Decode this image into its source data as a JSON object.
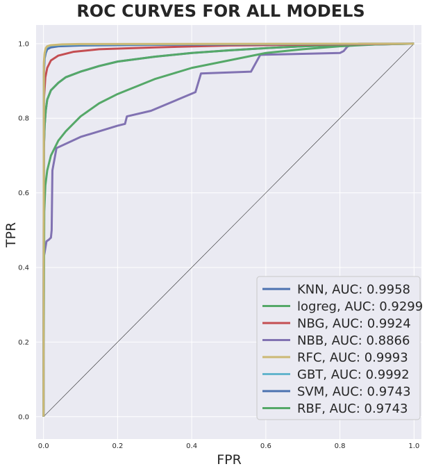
{
  "chart_data": {
    "type": "line",
    "title": "ROC CURVES FOR ALL MODELS",
    "xlabel": "FPR",
    "ylabel": "TPR",
    "xlim": [
      -0.02,
      1.02
    ],
    "ylim": [
      -0.06,
      1.05
    ],
    "xticks": [
      "0.0",
      "0.2",
      "0.4",
      "0.6",
      "0.8",
      "1.0"
    ],
    "yticks": [
      "0.0",
      "0.2",
      "0.4",
      "0.6",
      "0.8",
      "1.0"
    ],
    "grid": true,
    "legend_position": "bottom-right",
    "background_color": "#eaeaf2",
    "diagonal_reference": [
      [
        0,
        0
      ],
      [
        1,
        1
      ]
    ],
    "series": [
      {
        "name": "KNN, AUC: 0.9958",
        "color": "#4c72b0",
        "points": [
          [
            0,
            0
          ],
          [
            0.001,
            0.92
          ],
          [
            0.003,
            0.96
          ],
          [
            0.006,
            0.975
          ],
          [
            0.01,
            0.985
          ],
          [
            0.02,
            0.99
          ],
          [
            0.04,
            0.993
          ],
          [
            0.1,
            0.995
          ],
          [
            0.3,
            0.997
          ],
          [
            1,
            1
          ]
        ]
      },
      {
        "name": "logreg, AUC: 0.9299",
        "color": "#55a868",
        "points": [
          [
            0,
            0
          ],
          [
            0.002,
            0.55
          ],
          [
            0.005,
            0.62
          ],
          [
            0.01,
            0.66
          ],
          [
            0.02,
            0.7
          ],
          [
            0.04,
            0.74
          ],
          [
            0.06,
            0.765
          ],
          [
            0.1,
            0.805
          ],
          [
            0.15,
            0.84
          ],
          [
            0.2,
            0.865
          ],
          [
            0.25,
            0.885
          ],
          [
            0.3,
            0.905
          ],
          [
            0.35,
            0.92
          ],
          [
            0.4,
            0.935
          ],
          [
            0.45,
            0.945
          ],
          [
            0.5,
            0.955
          ],
          [
            0.55,
            0.965
          ],
          [
            0.6,
            0.975
          ],
          [
            0.7,
            0.985
          ],
          [
            0.8,
            0.993
          ],
          [
            0.9,
            0.998
          ],
          [
            1,
            1
          ]
        ]
      },
      {
        "name": "NBG, AUC: 0.9924",
        "color": "#c44e52",
        "points": [
          [
            0,
            0
          ],
          [
            0.001,
            0.85
          ],
          [
            0.005,
            0.91
          ],
          [
            0.01,
            0.935
          ],
          [
            0.02,
            0.955
          ],
          [
            0.04,
            0.968
          ],
          [
            0.08,
            0.978
          ],
          [
            0.15,
            0.985
          ],
          [
            0.3,
            0.99
          ],
          [
            0.5,
            0.995
          ],
          [
            1,
            1
          ]
        ]
      },
      {
        "name": "NBB, AUC: 0.8866",
        "color": "#8172b2",
        "points": [
          [
            0,
            0
          ],
          [
            0.001,
            0.43
          ],
          [
            0.003,
            0.44
          ],
          [
            0.008,
            0.47
          ],
          [
            0.015,
            0.475
          ],
          [
            0.02,
            0.48
          ],
          [
            0.022,
            0.5
          ],
          [
            0.024,
            0.66
          ],
          [
            0.035,
            0.72
          ],
          [
            0.1,
            0.75
          ],
          [
            0.15,
            0.765
          ],
          [
            0.2,
            0.78
          ],
          [
            0.22,
            0.785
          ],
          [
            0.225,
            0.805
          ],
          [
            0.29,
            0.82
          ],
          [
            0.41,
            0.87
          ],
          [
            0.425,
            0.92
          ],
          [
            0.56,
            0.925
          ],
          [
            0.585,
            0.97
          ],
          [
            0.8,
            0.975
          ],
          [
            0.81,
            0.98
          ],
          [
            0.82,
            0.992
          ],
          [
            0.835,
            0.998
          ],
          [
            0.85,
            1
          ],
          [
            1,
            1
          ]
        ]
      },
      {
        "name": "RFC, AUC: 0.9993",
        "color": "#ccb974",
        "points": [
          [
            0,
            0
          ],
          [
            0.001,
            0.95
          ],
          [
            0.003,
            0.975
          ],
          [
            0.006,
            0.988
          ],
          [
            0.01,
            0.993
          ],
          [
            0.02,
            0.996
          ],
          [
            0.05,
            0.998
          ],
          [
            0.1,
            0.999
          ],
          [
            1,
            1
          ]
        ]
      },
      {
        "name": "GBT, AUC: 0.9992",
        "color": "#64b5cd",
        "points": [
          [
            0,
            0
          ],
          [
            0.001,
            0.94
          ],
          [
            0.003,
            0.97
          ],
          [
            0.006,
            0.985
          ],
          [
            0.01,
            0.992
          ],
          [
            0.02,
            0.995
          ],
          [
            0.05,
            0.997
          ],
          [
            0.1,
            0.998
          ],
          [
            1,
            1
          ]
        ]
      },
      {
        "name": "SVM, AUC: 0.9743",
        "color": "#4c72b0",
        "points": [
          [
            0,
            0
          ],
          [
            0.001,
            0.72
          ],
          [
            0.003,
            0.78
          ],
          [
            0.006,
            0.82
          ],
          [
            0.01,
            0.85
          ],
          [
            0.02,
            0.875
          ],
          [
            0.04,
            0.895
          ],
          [
            0.06,
            0.91
          ],
          [
            0.1,
            0.925
          ],
          [
            0.15,
            0.94
          ],
          [
            0.2,
            0.952
          ],
          [
            0.3,
            0.965
          ],
          [
            0.4,
            0.975
          ],
          [
            0.5,
            0.982
          ],
          [
            0.6,
            0.988
          ],
          [
            0.7,
            0.993
          ],
          [
            0.8,
            0.996
          ],
          [
            1,
            1
          ]
        ]
      },
      {
        "name": "RBF, AUC: 0.9743",
        "color": "#55a868",
        "points": [
          [
            0,
            0
          ],
          [
            0.001,
            0.72
          ],
          [
            0.003,
            0.78
          ],
          [
            0.006,
            0.82
          ],
          [
            0.01,
            0.85
          ],
          [
            0.02,
            0.875
          ],
          [
            0.04,
            0.895
          ],
          [
            0.06,
            0.91
          ],
          [
            0.1,
            0.925
          ],
          [
            0.15,
            0.94
          ],
          [
            0.2,
            0.952
          ],
          [
            0.3,
            0.965
          ],
          [
            0.4,
            0.975
          ],
          [
            0.5,
            0.982
          ],
          [
            0.6,
            0.988
          ],
          [
            0.7,
            0.993
          ],
          [
            0.8,
            0.996
          ],
          [
            1,
            1
          ]
        ]
      }
    ]
  }
}
